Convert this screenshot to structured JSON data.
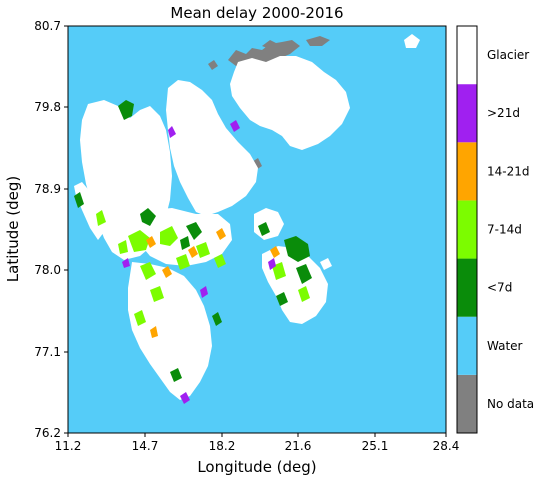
{
  "chart_data": {
    "type": "heatmap",
    "title": "Mean delay 2000-2016",
    "xlabel": "Longitude (deg)",
    "ylabel": "Latitude (deg)",
    "xlim": [
      11.2,
      28.4
    ],
    "ylim": [
      76.2,
      80.7
    ],
    "x_ticks": [
      "11.2",
      "14.7",
      "18.2",
      "21.6",
      "25.1",
      "28.4"
    ],
    "y_ticks": [
      "80.7",
      "79.8",
      "78.9",
      "78.0",
      "77.1",
      "76.2"
    ],
    "legend_placement": "colorbar-right",
    "colorbar": [
      {
        "label": "No data",
        "color": "#808080"
      },
      {
        "label": "Water",
        "color": "#55ccf8"
      },
      {
        "label": "<7d",
        "color": "#0a8c0a"
      },
      {
        "label": "7-14d",
        "color": "#7cfc00"
      },
      {
        "label": "14-21d",
        "color": "#ffa500"
      },
      {
        "label": ">21d",
        "color": "#a020f0"
      },
      {
        "label": "Glacier",
        "color": "#ffffff"
      }
    ]
  }
}
